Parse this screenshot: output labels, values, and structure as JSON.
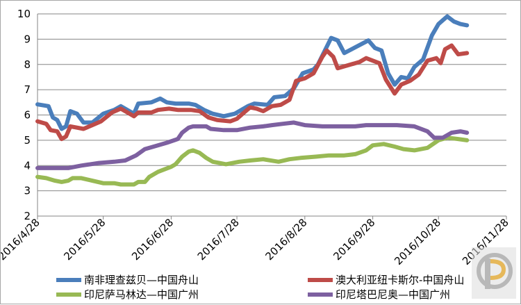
{
  "chart_data": {
    "type": "line",
    "title": "",
    "xlabel": "",
    "ylabel": "",
    "ylim": [
      2,
      10
    ],
    "yticks": [
      "2",
      "3",
      "4",
      "5",
      "6",
      "7",
      "8",
      "9",
      "10"
    ],
    "xtick_labels": [
      "2016/4/28",
      "2016/5/28",
      "2016/6/28",
      "2016/7/28",
      "2016/8/28",
      "2016/9/28",
      "2016/10/28",
      "2016/11/28"
    ],
    "xtick_days": [
      0,
      30,
      61,
      91,
      122,
      153,
      183,
      214
    ],
    "grid": true,
    "legend_position": "bottom",
    "series": [
      {
        "name": "南非理查兹贝—中国舟山",
        "color": "#4a7ebb",
        "points": [
          [
            0,
            6.42
          ],
          [
            5,
            6.35
          ],
          [
            7,
            5.9
          ],
          [
            9,
            5.8
          ],
          [
            11,
            5.45
          ],
          [
            13,
            5.55
          ],
          [
            15,
            6.15
          ],
          [
            18,
            6.05
          ],
          [
            21,
            5.7
          ],
          [
            25,
            5.7
          ],
          [
            30,
            6.05
          ],
          [
            35,
            6.2
          ],
          [
            38,
            6.35
          ],
          [
            44,
            6.05
          ],
          [
            46,
            6.45
          ],
          [
            52,
            6.5
          ],
          [
            56,
            6.65
          ],
          [
            59,
            6.5
          ],
          [
            63,
            6.45
          ],
          [
            69,
            6.45
          ],
          [
            72,
            6.4
          ],
          [
            76,
            6.2
          ],
          [
            80,
            6.05
          ],
          [
            85,
            5.95
          ],
          [
            90,
            6.05
          ],
          [
            96,
            6.35
          ],
          [
            99,
            6.45
          ],
          [
            105,
            6.4
          ],
          [
            108,
            6.7
          ],
          [
            113,
            6.75
          ],
          [
            117,
            7.05
          ],
          [
            121,
            7.65
          ],
          [
            126,
            7.8
          ],
          [
            128,
            8.0
          ],
          [
            134,
            9.05
          ],
          [
            137,
            8.95
          ],
          [
            140,
            8.45
          ],
          [
            151,
            8.95
          ],
          [
            154,
            8.65
          ],
          [
            157,
            8.55
          ],
          [
            160,
            7.65
          ],
          [
            163,
            7.2
          ],
          [
            166,
            7.5
          ],
          [
            169,
            7.45
          ],
          [
            172,
            7.9
          ],
          [
            176,
            8.2
          ],
          [
            180,
            9.15
          ],
          [
            183,
            9.6
          ],
          [
            187,
            9.9
          ],
          [
            190,
            9.7
          ],
          [
            193,
            9.6
          ],
          [
            196,
            9.55
          ]
        ]
      },
      {
        "name": "澳大利亚纽卡斯尔-中国舟山",
        "color": "#be4b48",
        "points": [
          [
            0,
            5.75
          ],
          [
            4,
            5.65
          ],
          [
            6,
            5.4
          ],
          [
            9,
            5.35
          ],
          [
            11,
            5.05
          ],
          [
            13,
            5.15
          ],
          [
            15,
            5.55
          ],
          [
            18,
            5.5
          ],
          [
            21,
            5.45
          ],
          [
            25,
            5.6
          ],
          [
            29,
            5.75
          ],
          [
            34,
            6.1
          ],
          [
            38,
            6.25
          ],
          [
            44,
            5.95
          ],
          [
            46,
            6.1
          ],
          [
            52,
            6.1
          ],
          [
            55,
            6.2
          ],
          [
            60,
            6.25
          ],
          [
            64,
            6.2
          ],
          [
            70,
            6.2
          ],
          [
            74,
            6.15
          ],
          [
            78,
            5.9
          ],
          [
            82,
            5.8
          ],
          [
            88,
            5.75
          ],
          [
            91,
            5.85
          ],
          [
            95,
            6.15
          ],
          [
            97,
            6.3
          ],
          [
            100,
            6.25
          ],
          [
            103,
            6.15
          ],
          [
            107,
            6.35
          ],
          [
            111,
            6.4
          ],
          [
            115,
            6.6
          ],
          [
            118,
            7.35
          ],
          [
            122,
            7.45
          ],
          [
            126,
            7.65
          ],
          [
            130,
            8.3
          ],
          [
            132,
            8.55
          ],
          [
            135,
            8.3
          ],
          [
            137,
            7.85
          ],
          [
            143,
            8.0
          ],
          [
            147,
            8.1
          ],
          [
            150,
            8.25
          ],
          [
            153,
            8.15
          ],
          [
            156,
            8.05
          ],
          [
            159,
            7.4
          ],
          [
            163,
            6.85
          ],
          [
            166,
            7.2
          ],
          [
            170,
            7.35
          ],
          [
            174,
            7.6
          ],
          [
            178,
            8.15
          ],
          [
            182,
            8.25
          ],
          [
            184,
            8.05
          ],
          [
            186,
            8.6
          ],
          [
            189,
            8.75
          ],
          [
            192,
            8.4
          ],
          [
            196,
            8.45
          ]
        ]
      },
      {
        "name": "印尼萨马林达—中国广州",
        "color": "#98b954",
        "points": [
          [
            0,
            3.55
          ],
          [
            4,
            3.5
          ],
          [
            8,
            3.4
          ],
          [
            11,
            3.35
          ],
          [
            14,
            3.4
          ],
          [
            16,
            3.5
          ],
          [
            20,
            3.5
          ],
          [
            25,
            3.4
          ],
          [
            30,
            3.3
          ],
          [
            35,
            3.3
          ],
          [
            38,
            3.25
          ],
          [
            44,
            3.25
          ],
          [
            46,
            3.35
          ],
          [
            49,
            3.35
          ],
          [
            51,
            3.55
          ],
          [
            55,
            3.75
          ],
          [
            58,
            3.85
          ],
          [
            61,
            3.95
          ],
          [
            63,
            4.05
          ],
          [
            66,
            4.35
          ],
          [
            69,
            4.55
          ],
          [
            71,
            4.6
          ],
          [
            74,
            4.5
          ],
          [
            77,
            4.3
          ],
          [
            80,
            4.15
          ],
          [
            83,
            4.1
          ],
          [
            86,
            4.05
          ],
          [
            92,
            4.15
          ],
          [
            97,
            4.2
          ],
          [
            103,
            4.25
          ],
          [
            110,
            4.15
          ],
          [
            115,
            4.25
          ],
          [
            120,
            4.3
          ],
          [
            127,
            4.35
          ],
          [
            133,
            4.4
          ],
          [
            140,
            4.4
          ],
          [
            145,
            4.45
          ],
          [
            150,
            4.6
          ],
          [
            153,
            4.8
          ],
          [
            158,
            4.85
          ],
          [
            163,
            4.75
          ],
          [
            167,
            4.65
          ],
          [
            172,
            4.6
          ],
          [
            178,
            4.7
          ],
          [
            183,
            5.0
          ],
          [
            187,
            5.1
          ],
          [
            192,
            5.05
          ],
          [
            196,
            5.0
          ]
        ]
      },
      {
        "name": "印尼塔巴尼奥—中国广州",
        "color": "#7d60a0",
        "points": [
          [
            0,
            3.9
          ],
          [
            8,
            3.9
          ],
          [
            14,
            3.9
          ],
          [
            20,
            4.0
          ],
          [
            28,
            4.1
          ],
          [
            35,
            4.15
          ],
          [
            40,
            4.2
          ],
          [
            45,
            4.4
          ],
          [
            49,
            4.65
          ],
          [
            53,
            4.75
          ],
          [
            59,
            4.9
          ],
          [
            64,
            5.05
          ],
          [
            66,
            5.3
          ],
          [
            69,
            5.5
          ],
          [
            71,
            5.55
          ],
          [
            77,
            5.55
          ],
          [
            79,
            5.45
          ],
          [
            85,
            5.4
          ],
          [
            91,
            5.4
          ],
          [
            97,
            5.5
          ],
          [
            103,
            5.55
          ],
          [
            107,
            5.6
          ],
          [
            112,
            5.65
          ],
          [
            117,
            5.7
          ],
          [
            122,
            5.6
          ],
          [
            130,
            5.55
          ],
          [
            138,
            5.55
          ],
          [
            145,
            5.55
          ],
          [
            150,
            5.6
          ],
          [
            155,
            5.6
          ],
          [
            164,
            5.6
          ],
          [
            172,
            5.55
          ],
          [
            178,
            5.35
          ],
          [
            181,
            5.1
          ],
          [
            185,
            5.1
          ],
          [
            189,
            5.3
          ],
          [
            193,
            5.35
          ],
          [
            196,
            5.3
          ]
        ]
      }
    ]
  },
  "icons": {
    "watermark": "pp-logo-icon"
  }
}
